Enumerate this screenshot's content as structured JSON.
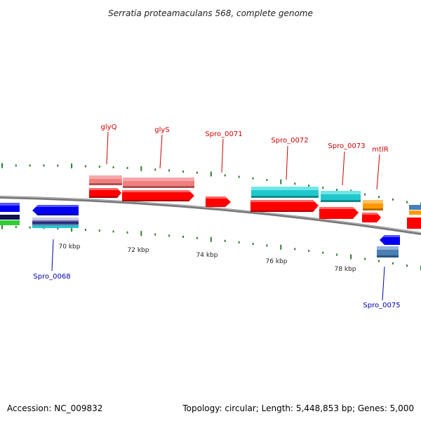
{
  "title": "Serratia proteamaculans 568, complete genome",
  "footer": {
    "accession": "Accession: NC_009832",
    "summary": "Topology: circular; Length: 5,448,853 bp; Genes: 5,000"
  },
  "scale_labels": [
    "70 kbp",
    "72 kbp",
    "74 kbp",
    "76 kbp",
    "78 kbp"
  ],
  "gene_labels": {
    "top": [
      "glyQ",
      "glyS",
      "Spro_0071",
      "Spro_0072",
      "Spro_0073",
      "mtlR"
    ],
    "bottom": [
      "Spro_0068",
      "Spro_0075"
    ]
  },
  "colors": {
    "forward_label": "#cc0000",
    "reverse_label": "#0000aa",
    "tick": "#2e7d32",
    "backbone": "#808080",
    "red": "#ff0000",
    "pink": "#f08080",
    "cyan": "#20c8cc",
    "orange": "#ff9900",
    "blue": "#0000ee",
    "steelblue": "#4a7fb5",
    "green": "#33cc33"
  }
}
